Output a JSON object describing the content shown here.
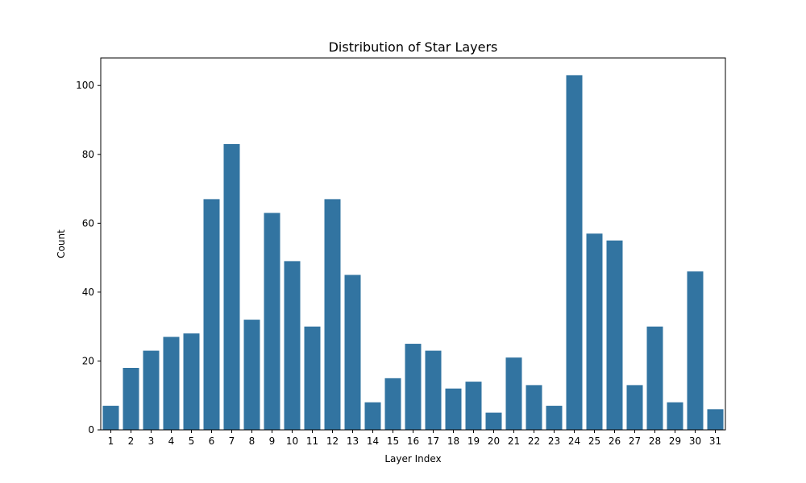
{
  "chart_data": {
    "type": "bar",
    "title": "Distribution of Star Layers",
    "xlabel": "Layer Index",
    "ylabel": "Count",
    "categories": [
      "1",
      "2",
      "3",
      "4",
      "5",
      "6",
      "7",
      "8",
      "9",
      "10",
      "11",
      "12",
      "13",
      "14",
      "15",
      "16",
      "17",
      "18",
      "19",
      "20",
      "21",
      "22",
      "23",
      "24",
      "25",
      "26",
      "27",
      "28",
      "29",
      "30",
      "31"
    ],
    "values": [
      7,
      18,
      23,
      27,
      28,
      67,
      83,
      32,
      63,
      49,
      30,
      67,
      45,
      8,
      15,
      25,
      23,
      12,
      14,
      5,
      21,
      13,
      7,
      103,
      57,
      55,
      13,
      30,
      8,
      46,
      6
    ],
    "ylim": [
      0,
      108
    ],
    "yticks": [
      0,
      20,
      40,
      60,
      80,
      100
    ],
    "grid": false,
    "colors": {
      "bar": "#3274a1"
    }
  }
}
